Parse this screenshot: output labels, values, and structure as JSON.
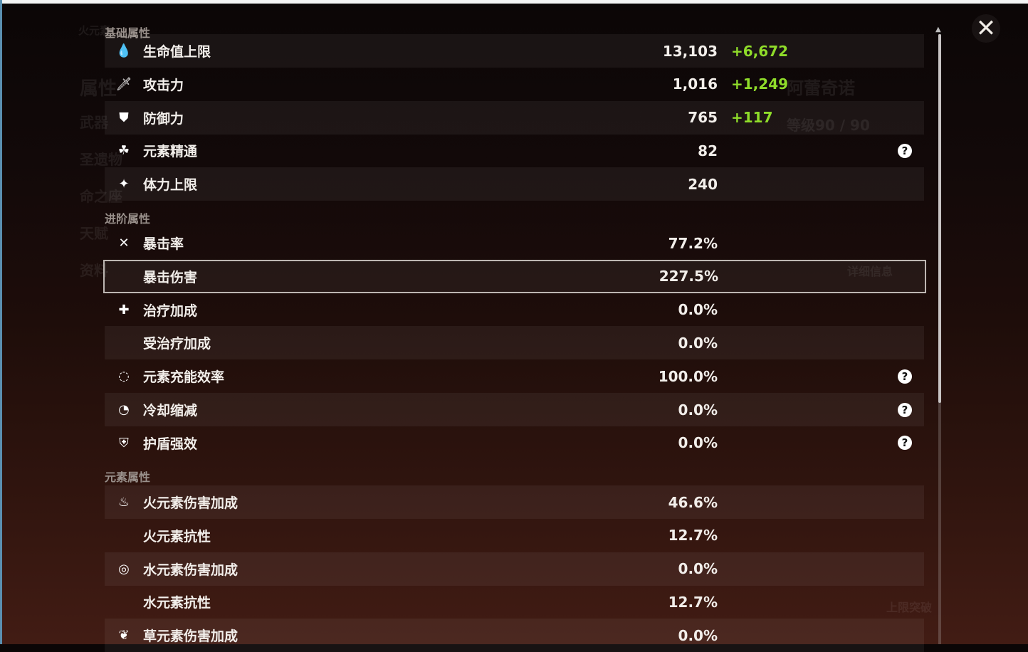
{
  "background": {
    "character_name": "阿蕾奇诺",
    "element_label": "火元素",
    "level": "等级90 / 90",
    "menu": [
      "属性",
      "武器",
      "圣遗物",
      "命之座",
      "天赋",
      "资料"
    ],
    "details_button": "详细信息",
    "ascend_button": "上限突破"
  },
  "sections": {
    "base": {
      "title": "基础属性",
      "rows": [
        {
          "icon": "hp-drop-icon",
          "glyph": "💧",
          "label": "生命值上限",
          "value": "13,103",
          "bonus": "+6,672"
        },
        {
          "icon": "sword-icon",
          "glyph": "🗡",
          "label": "攻击力",
          "value": "1,016",
          "bonus": "+1,249"
        },
        {
          "icon": "shield-icon",
          "glyph": "⛊",
          "label": "防御力",
          "value": "765",
          "bonus": "+117"
        },
        {
          "icon": "elemental-mastery-icon",
          "glyph": "☘",
          "label": "元素精通",
          "value": "82",
          "help": true
        },
        {
          "icon": "stamina-icon",
          "glyph": "✦",
          "label": "体力上限",
          "value": "240"
        }
      ]
    },
    "advanced": {
      "title": "进阶属性",
      "rows": [
        {
          "icon": "crit-rate-icon",
          "glyph": "✕",
          "label": "暴击率",
          "value": "77.2%"
        },
        {
          "icon": "",
          "glyph": "",
          "label": "暴击伤害",
          "value": "227.5%",
          "selected": true
        },
        {
          "icon": "healing-cross-icon",
          "glyph": "✚",
          "label": "治疗加成",
          "value": "0.0%"
        },
        {
          "icon": "",
          "glyph": "",
          "label": "受治疗加成",
          "value": "0.0%"
        },
        {
          "icon": "energy-recharge-icon",
          "glyph": "◌",
          "label": "元素充能效率",
          "value": "100.0%",
          "help": true
        },
        {
          "icon": "cooldown-icon",
          "glyph": "◔",
          "label": "冷却缩减",
          "value": "0.0%",
          "help": true
        },
        {
          "icon": "shield-strength-icon",
          "glyph": "⛨",
          "label": "护盾强效",
          "value": "0.0%",
          "help": true
        }
      ]
    },
    "elemental": {
      "title": "元素属性",
      "rows": [
        {
          "icon": "pyro-icon",
          "glyph": "♨",
          "label": "火元素伤害加成",
          "value": "46.6%"
        },
        {
          "icon": "",
          "glyph": "",
          "label": "火元素抗性",
          "value": "12.7%"
        },
        {
          "icon": "hydro-icon",
          "glyph": "◎",
          "label": "水元素伤害加成",
          "value": "0.0%"
        },
        {
          "icon": "",
          "glyph": "",
          "label": "水元素抗性",
          "value": "12.7%"
        },
        {
          "icon": "dendro-icon",
          "glyph": "❦",
          "label": "草元素伤害加成",
          "value": "0.0%"
        }
      ]
    }
  },
  "help_glyph": "?",
  "close_glyph": "✕",
  "colors": {
    "bonus": "#8fdc2a",
    "text": "#f2eeea"
  }
}
